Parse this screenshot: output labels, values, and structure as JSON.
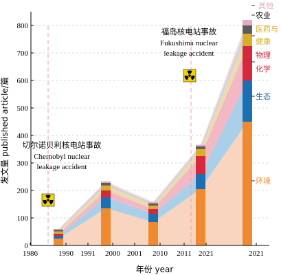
{
  "chart_data": {
    "type": "area",
    "xlabel": "年份 year",
    "ylabel": "发文量 published article/篇",
    "ylim": [
      0,
      850
    ],
    "yticks": [
      0,
      100,
      200,
      300,
      400,
      500,
      600,
      700,
      800
    ],
    "grid": "horizontal-dashed",
    "x_tick_labels": [
      "1986",
      "1990",
      "1991",
      "2000",
      "2001",
      "2010",
      "2011",
      "2021",
      "2021"
    ],
    "periods": [
      "1986-1990",
      "1991-2000",
      "2001-2010",
      "2011-2021"
    ],
    "bar_periods": [
      "1986-1990",
      "1991-2000",
      "2001-2010",
      "2011-2021",
      "2011-2021"
    ],
    "series": [
      {
        "name": "环境",
        "color": "#f08a30",
        "area_color": "#f9d5bf",
        "values": [
          25,
          135,
          85,
          205,
          450
        ]
      },
      {
        "name": "生态",
        "color": "#1c6fb0",
        "area_color": "#aacfe8",
        "values": [
          10,
          40,
          30,
          55,
          150
        ]
      },
      {
        "name": "物理 化学",
        "color": "#d6283c",
        "area_color": "#f3b8c3",
        "values": [
          8,
          25,
          18,
          65,
          125
        ]
      },
      {
        "name": "医药与 健康",
        "color": "#d9ae2c",
        "area_color": "#eadcae",
        "values": [
          8,
          18,
          12,
          25,
          45
        ]
      },
      {
        "name": "农业",
        "color": "#5c5c5c",
        "area_color": "#d3d3d3",
        "values": [
          6,
          10,
          8,
          10,
          30
        ]
      },
      {
        "name": "其他",
        "color": "#e7a9c6",
        "area_color": "#f2d9e5",
        "values": [
          3,
          5,
          5,
          6,
          20
        ]
      }
    ],
    "annotations": [
      {
        "zh": "切尔诺贝利核电站事故",
        "en1": "Chernobyl nuclear",
        "en2": "leakage accident",
        "x": 1986
      },
      {
        "zh": "福岛核电站事故",
        "en1": "Fukushima nuclear",
        "en2": "leakage accident",
        "x": 2011
      }
    ]
  },
  "colors": {
    "axis": "#000000",
    "grid": "#b0b0b0",
    "marker": "#e8a0a8",
    "radiation": "#f2d400"
  },
  "icons": [
    "radiation-icon"
  ]
}
